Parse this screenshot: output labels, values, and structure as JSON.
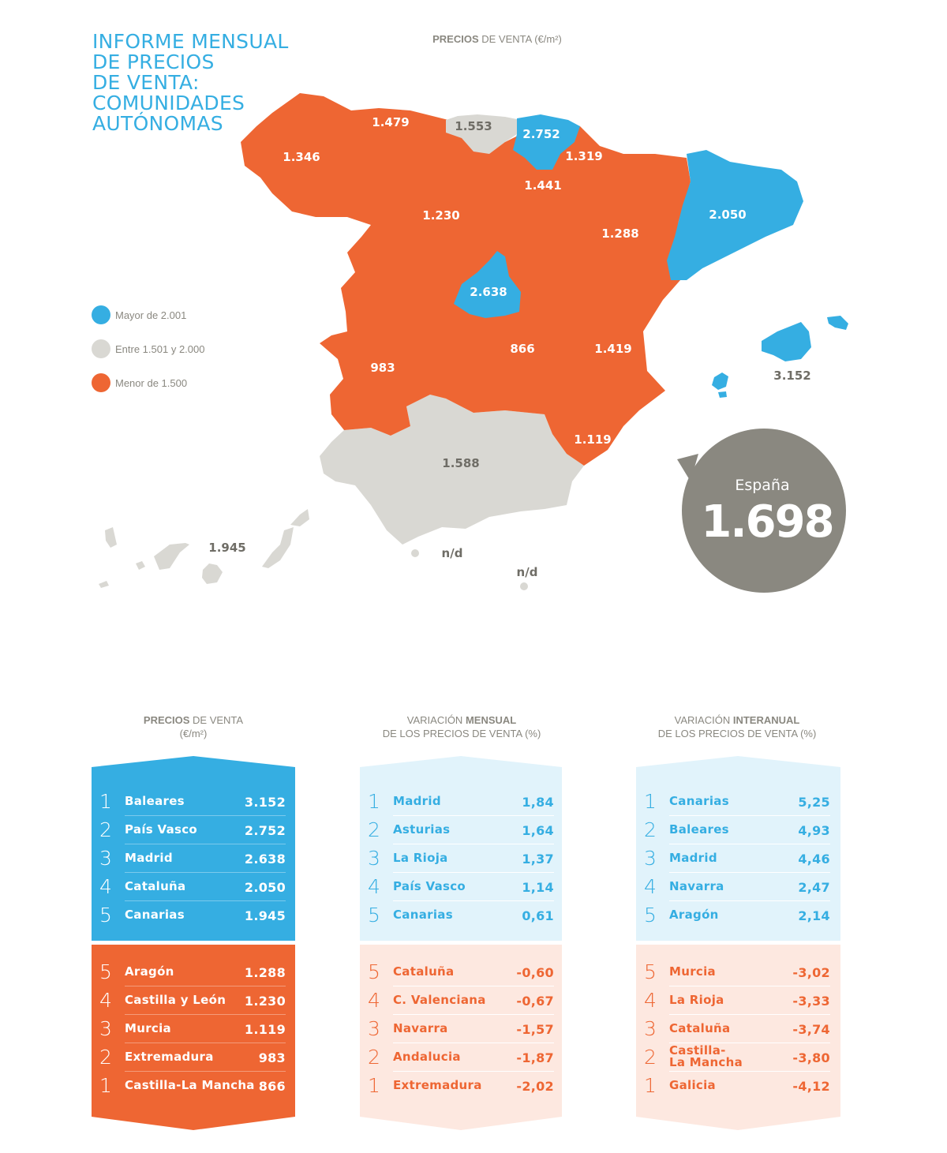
{
  "title": "INFORME MENSUAL\nDE PRECIOS\nDE VENTA:\nCOMUNIDADES\nAUTÓNOMAS",
  "map_header": {
    "bold": "PRECIOS",
    "rest": " DE VENTA (€/m²)"
  },
  "colors": {
    "blue": "#35aee2",
    "grey": "#d9d8d3",
    "orange": "#ee6633",
    "dark_grey": "#8a8880",
    "light_blue": "#e1f3fb",
    "light_orange": "#fde8e0"
  },
  "legend": [
    {
      "label": "Mayor de 2.001",
      "color": "#35aee2"
    },
    {
      "label": "Entre 1.501 y 2.000",
      "color": "#d9d8d3"
    },
    {
      "label": "Menor de 1.500",
      "color": "#ee6633"
    }
  ],
  "map_labels": {
    "asturias": "1.479",
    "cantabria": "1.553",
    "pais_vasco": "2.752",
    "galicia": "1.346",
    "navarra": "1.319",
    "la_rioja": "1.441",
    "castilla_leon": "1.230",
    "aragon": "1.288",
    "cataluna": "2.050",
    "madrid": "2.638",
    "castilla_la_mancha": "866",
    "c_valenciana": "1.419",
    "extremadura": "983",
    "murcia": "1.119",
    "andalucia": "1.588",
    "baleares": "3.152",
    "canarias": "1.945",
    "ceuta": "n/d",
    "melilla": "n/d"
  },
  "espana": {
    "label": "España",
    "value": "1.698"
  },
  "columns": [
    {
      "title_line1_plain_before": "",
      "title_line1_bold": "PRECIOS",
      "title_line1_plain_after": " DE VENTA",
      "title_line2": "(€/m²)",
      "top": [
        {
          "rank": "1",
          "name": "Baleares",
          "value": "3.152"
        },
        {
          "rank": "2",
          "name": "País Vasco",
          "value": "2.752"
        },
        {
          "rank": "3",
          "name": "Madrid",
          "value": "2.638"
        },
        {
          "rank": "4",
          "name": "Cataluña",
          "value": "2.050"
        },
        {
          "rank": "5",
          "name": "Canarias",
          "value": "1.945"
        }
      ],
      "bottom": [
        {
          "rank": "5",
          "name": "Aragón",
          "value": "1.288"
        },
        {
          "rank": "4",
          "name": "Castilla y León",
          "value": "1.230"
        },
        {
          "rank": "3",
          "name": "Murcia",
          "value": "1.119"
        },
        {
          "rank": "2",
          "name": "Extremadura",
          "value": "983"
        },
        {
          "rank": "1",
          "name": "Castilla-La Mancha",
          "value": "866"
        }
      ]
    },
    {
      "title_line1_plain_before": "VARIACIÓN ",
      "title_line1_bold": "MENSUAL",
      "title_line1_plain_after": "",
      "title_line2": "DE LOS PRECIOS DE VENTA (%)",
      "top": [
        {
          "rank": "1",
          "name": "Madrid",
          "value": "1,84"
        },
        {
          "rank": "2",
          "name": "Asturias",
          "value": "1,64"
        },
        {
          "rank": "3",
          "name": "La Rioja",
          "value": "1,37"
        },
        {
          "rank": "4",
          "name": "País Vasco",
          "value": "1,14"
        },
        {
          "rank": "5",
          "name": "Canarias",
          "value": "0,61"
        }
      ],
      "bottom": [
        {
          "rank": "5",
          "name": "Cataluña",
          "value": "-0,60"
        },
        {
          "rank": "4",
          "name": "C. Valenciana",
          "value": "-0,67"
        },
        {
          "rank": "3",
          "name": "Navarra",
          "value": "-1,57"
        },
        {
          "rank": "2",
          "name": "Andalucia",
          "value": "-1,87"
        },
        {
          "rank": "1",
          "name": "Extremadura",
          "value": "-2,02"
        }
      ]
    },
    {
      "title_line1_plain_before": "VARIACIÓN ",
      "title_line1_bold": "INTERANUAL",
      "title_line1_plain_after": "",
      "title_line2": "DE LOS PRECIOS DE VENTA (%)",
      "top": [
        {
          "rank": "1",
          "name": "Canarias",
          "value": "5,25"
        },
        {
          "rank": "2",
          "name": "Baleares",
          "value": "4,93"
        },
        {
          "rank": "3",
          "name": "Madrid",
          "value": "4,46"
        },
        {
          "rank": "4",
          "name": "Navarra",
          "value": "2,47"
        },
        {
          "rank": "5",
          "name": "Aragón",
          "value": "2,14"
        }
      ],
      "bottom": [
        {
          "rank": "5",
          "name": "Murcia",
          "value": "-3,02"
        },
        {
          "rank": "4",
          "name": "La Rioja",
          "value": "-3,33"
        },
        {
          "rank": "3",
          "name": "Cataluña",
          "value": "-3,74"
        },
        {
          "rank": "2",
          "name": "Castilla-\nLa Mancha",
          "value": "-3,80"
        },
        {
          "rank": "1",
          "name": "Galicia",
          "value": "-4,12"
        }
      ]
    }
  ]
}
